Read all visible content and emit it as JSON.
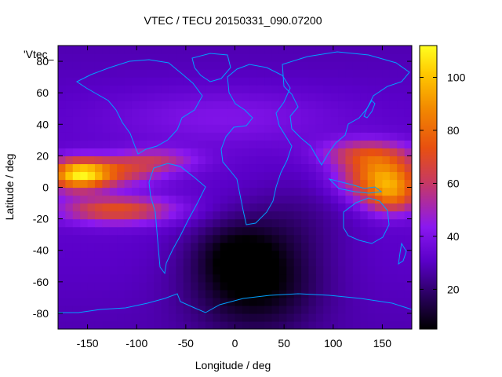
{
  "title": "VTEC / TECU 20150331_090.07200",
  "series_key": "'Vtec_",
  "xlabel": "Longitude / deg",
  "ylabel": "Latitude / deg",
  "x_ticks": [
    "-150",
    "-100",
    "-50",
    "0",
    "50",
    "100",
    "150"
  ],
  "y_ticks": [
    "80",
    "60",
    "40",
    "20",
    "0",
    "-20",
    "-40",
    "-60",
    "-80"
  ],
  "colorbar_ticks": [
    "100",
    "80",
    "60",
    "40",
    "20"
  ],
  "chart_data": {
    "type": "heatmap",
    "xlim": [
      -180,
      180
    ],
    "ylim": [
      -90,
      90
    ],
    "zlim": [
      5,
      112
    ],
    "x_tick_values": [
      -150,
      -100,
      -50,
      0,
      50,
      100,
      150
    ],
    "y_tick_values": [
      80,
      60,
      40,
      20,
      0,
      -20,
      -40,
      -60,
      -80
    ],
    "colorbar_tick_values": [
      100,
      80,
      60,
      40,
      20
    ],
    "colormap": [
      "#000000",
      "#2a0060",
      "#5a00c8",
      "#8a18f0",
      "#c83a60",
      "#e85010",
      "#f28a00",
      "#ffc800",
      "#ffff20"
    ],
    "coastline_color": "#00a0ff",
    "grid": false
  }
}
